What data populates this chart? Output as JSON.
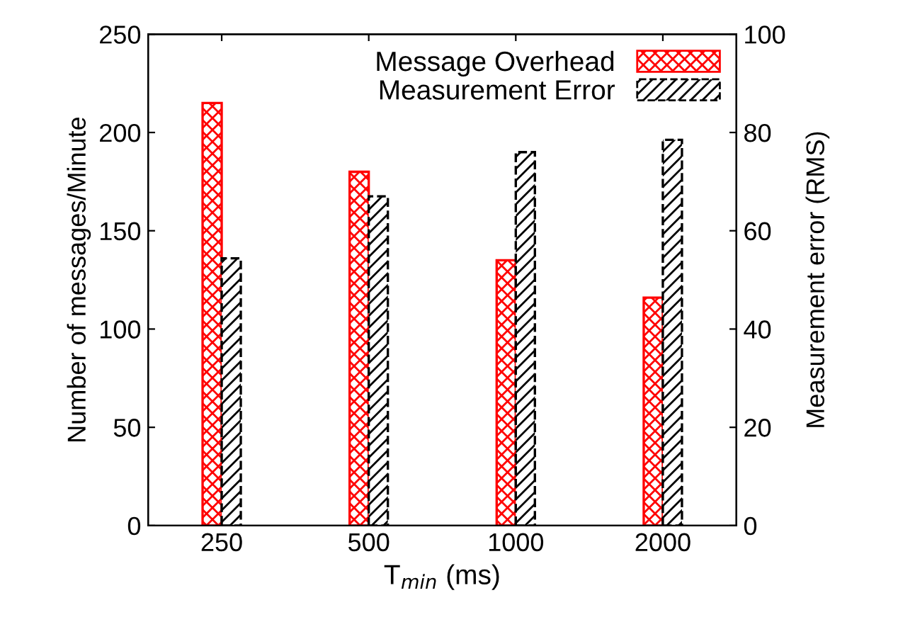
{
  "chart_data": {
    "type": "bar",
    "xlabel": "T$_{min}$ (ms)",
    "ylabel": "Number of messages/Minute",
    "y2label": "Measurement error (RMS)",
    "categories": [
      "250",
      "500",
      "1000",
      "2000"
    ],
    "series": [
      {
        "name": "Message Overhead",
        "color": "#ff0000",
        "values": [
          215,
          180,
          135,
          116
        ]
      },
      {
        "name": "Measurement Error",
        "color": "#000000",
        "values": [
          54.4,
          67,
          76,
          78.5
        ],
        "axis": "y2"
      }
    ],
    "ylim": [
      0,
      250
    ],
    "yticks": [
      0,
      50,
      100,
      150,
      200,
      250
    ],
    "y2lim": [
      0,
      100
    ],
    "y2ticks": [
      0,
      20,
      40,
      60,
      80,
      100
    ],
    "legend": "top right",
    "grid": false
  }
}
